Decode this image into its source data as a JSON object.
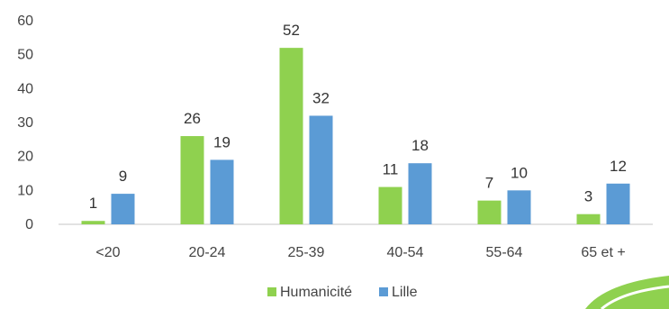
{
  "chart_data": {
    "type": "bar",
    "title": "",
    "xlabel": "",
    "ylabel": "",
    "categories": [
      "<20",
      "20-24",
      "25-39",
      "40-54",
      "55-64",
      "65 et +"
    ],
    "series": [
      {
        "name": "Humanicité",
        "color": "#8fd14f",
        "values": [
          1,
          26,
          52,
          11,
          7,
          3
        ]
      },
      {
        "name": "Lille",
        "color": "#5b9bd5",
        "values": [
          9,
          19,
          32,
          18,
          10,
          12
        ]
      }
    ],
    "ylim": [
      0,
      60
    ],
    "yticks": [
      0,
      10,
      20,
      30,
      40,
      50,
      60
    ],
    "grid": false,
    "legend_position": "bottom-center",
    "decoration_color": "#8fd14f"
  }
}
